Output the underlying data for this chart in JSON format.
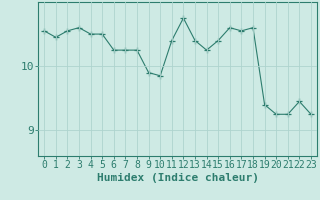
{
  "x": [
    0,
    1,
    2,
    3,
    4,
    5,
    6,
    7,
    8,
    9,
    10,
    11,
    12,
    13,
    14,
    15,
    16,
    17,
    18,
    19,
    20,
    21,
    22,
    23
  ],
  "y": [
    10.55,
    10.45,
    10.55,
    10.6,
    10.5,
    10.5,
    10.25,
    10.25,
    10.25,
    9.9,
    9.85,
    10.4,
    10.75,
    10.4,
    10.25,
    10.4,
    10.6,
    10.55,
    10.6,
    9.4,
    9.25,
    9.25,
    9.45,
    9.25
  ],
  "line_color": "#2d7d6e",
  "marker": "+",
  "marker_size": 4,
  "bg_color": "#ceeae4",
  "grid_color": "#aed4ce",
  "axis_color": "#2d7d6e",
  "xlabel": "Humidex (Indice chaleur)",
  "xlabel_fontsize": 8,
  "yticks": [
    9,
    10
  ],
  "ylim": [
    8.6,
    11.0
  ],
  "xlim": [
    -0.5,
    23.5
  ],
  "tick_fontsize": 7
}
